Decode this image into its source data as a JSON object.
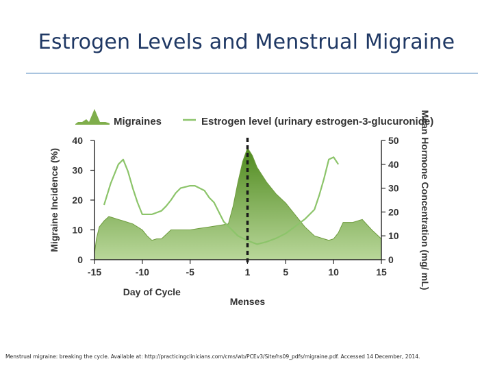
{
  "slide": {
    "title": "Estrogen Levels and Menstrual Migraine",
    "citation": "Menstrual migraine: breaking the cycle. Available at: http://practicingclinicians.com/cms/wb/PCEv3/Site/hs09_pdfs/migraine.pdf. Accessed 14 December, 2014."
  },
  "colors": {
    "title": "#1f3864",
    "rule": "#a9c4df",
    "migraine_fill_light": "#b9d79a",
    "migraine_fill_dark": "#4f8a1e",
    "estrogen_line": "#8cc46a",
    "axis": "#222222",
    "menses_line": "#1a1a1a"
  },
  "chart_data": {
    "type": "area",
    "xlabel": "Day of Cycle",
    "x_annotation": "Menses",
    "ylabel_left": "Migraine Incidence (%)",
    "ylabel_right": "Mean Hormone Concentration (mg/ mL)",
    "xlim": [
      -15,
      15
    ],
    "ylim_left": [
      0,
      40
    ],
    "ylim_right": [
      0,
      50
    ],
    "x_ticks": [
      -15,
      -10,
      -5,
      1,
      5,
      10,
      15
    ],
    "y_ticks_left": [
      0,
      10,
      20,
      30,
      40
    ],
    "y_ticks_right": [
      0,
      10,
      20,
      30,
      40,
      50
    ],
    "reference_line_x": 1,
    "legend": {
      "placement": "top",
      "entries": [
        {
          "name": "Migraines",
          "kind": "area"
        },
        {
          "name": "Estrogen level (urinary estrogen-3-glucuronide)",
          "kind": "line"
        }
      ]
    },
    "series": [
      {
        "name": "Migraines",
        "axis": "left",
        "x": [
          -15,
          -14.8,
          -14.5,
          -14,
          -13.5,
          -13,
          -12.5,
          -12,
          -11,
          -10,
          -9.5,
          -9,
          -8.5,
          -8,
          -7,
          -6,
          -5,
          -4,
          -3,
          -2,
          -1,
          -0.5,
          0,
          0.5,
          1,
          1.5,
          2,
          3,
          4,
          5,
          6,
          7,
          8,
          9,
          9.5,
          10,
          10.5,
          11,
          12,
          13,
          14,
          15
        ],
        "values": [
          2,
          7,
          11,
          13,
          14.5,
          14,
          13.5,
          13,
          12,
          10,
          8,
          6.5,
          7,
          7,
          10,
          10,
          10,
          10.5,
          11,
          11.5,
          12,
          18,
          26,
          33,
          37.5,
          35,
          31,
          26,
          22,
          19,
          15,
          11,
          8,
          7,
          6.5,
          7,
          9,
          12.5,
          12.5,
          13.5,
          10,
          7
        ]
      },
      {
        "name": "Estrogen level (urinary estrogen-3-glucuronide)",
        "axis": "right",
        "x": [
          -14,
          -13.3,
          -12.5,
          -12,
          -11.5,
          -11,
          -10.5,
          -10,
          -9,
          -8,
          -7.5,
          -7,
          -6.5,
          -6,
          -5,
          -4.5,
          -4,
          -3.5,
          -3,
          -2.5,
          -2,
          -1.5,
          -1,
          0,
          1,
          2,
          3,
          4,
          5,
          6,
          7,
          8,
          8.5,
          9,
          9.5,
          10,
          10.5
        ],
        "values": [
          23,
          32,
          40,
          42,
          37,
          30,
          24,
          19,
          19,
          20.5,
          22.5,
          25,
          28,
          30,
          31,
          31,
          30,
          29,
          26,
          24,
          20,
          16,
          14,
          10,
          8,
          6.5,
          7.5,
          9,
          11,
          14,
          17,
          21,
          27,
          34,
          42,
          43,
          40
        ]
      }
    ]
  }
}
